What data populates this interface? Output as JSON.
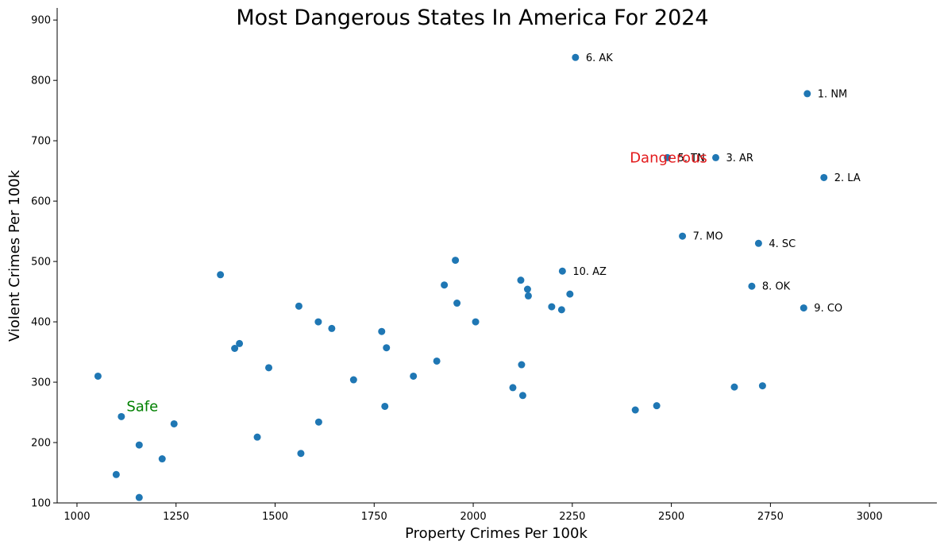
{
  "chart_data": {
    "type": "scatter",
    "title": "Most Dangerous States In America For 2024",
    "xlabel": "Property Crimes Per 100k",
    "ylabel": "Violent Crimes Per 100k",
    "xlim": [
      950,
      3170
    ],
    "ylim": [
      100,
      920
    ],
    "xticks": [
      1000,
      1250,
      1500,
      1750,
      2000,
      2250,
      2500,
      2750,
      3000
    ],
    "yticks": [
      100,
      200,
      300,
      400,
      500,
      600,
      700,
      800,
      900
    ],
    "grid": false,
    "point_color": "#1f77b4",
    "points": [
      {
        "x": 2843,
        "y": 778,
        "label": "1. NM"
      },
      {
        "x": 2885,
        "y": 639,
        "label": "2. LA"
      },
      {
        "x": 2612,
        "y": 672,
        "label": "3. AR"
      },
      {
        "x": 2720,
        "y": 530,
        "label": "4. SC"
      },
      {
        "x": 2490,
        "y": 672,
        "label": "5. TN"
      },
      {
        "x": 2258,
        "y": 838,
        "label": "6. AK"
      },
      {
        "x": 2528,
        "y": 542,
        "label": "7. MO"
      },
      {
        "x": 2703,
        "y": 459,
        "label": "8. OK"
      },
      {
        "x": 2834,
        "y": 423,
        "label": "9. CO"
      },
      {
        "x": 2225,
        "y": 484,
        "label": "10. AZ"
      },
      {
        "x": 1053,
        "y": 310
      },
      {
        "x": 1099,
        "y": 147
      },
      {
        "x": 1112,
        "y": 243
      },
      {
        "x": 1157,
        "y": 196
      },
      {
        "x": 1157,
        "y": 109
      },
      {
        "x": 1215,
        "y": 173
      },
      {
        "x": 1245,
        "y": 231
      },
      {
        "x": 1362,
        "y": 478
      },
      {
        "x": 1398,
        "y": 356
      },
      {
        "x": 1410,
        "y": 364
      },
      {
        "x": 1455,
        "y": 209
      },
      {
        "x": 1484,
        "y": 324
      },
      {
        "x": 1560,
        "y": 426
      },
      {
        "x": 1565,
        "y": 182
      },
      {
        "x": 1609,
        "y": 400
      },
      {
        "x": 1610,
        "y": 234
      },
      {
        "x": 1643,
        "y": 389
      },
      {
        "x": 1698,
        "y": 304
      },
      {
        "x": 1769,
        "y": 384
      },
      {
        "x": 1777,
        "y": 260
      },
      {
        "x": 1781,
        "y": 357
      },
      {
        "x": 1849,
        "y": 310
      },
      {
        "x": 1908,
        "y": 335
      },
      {
        "x": 1927,
        "y": 461
      },
      {
        "x": 1955,
        "y": 502
      },
      {
        "x": 1959,
        "y": 431
      },
      {
        "x": 2006,
        "y": 400
      },
      {
        "x": 2100,
        "y": 291
      },
      {
        "x": 2120,
        "y": 469
      },
      {
        "x": 2122,
        "y": 329
      },
      {
        "x": 2125,
        "y": 278
      },
      {
        "x": 2137,
        "y": 454
      },
      {
        "x": 2139,
        "y": 443
      },
      {
        "x": 2198,
        "y": 425
      },
      {
        "x": 2223,
        "y": 420
      },
      {
        "x": 2244,
        "y": 446
      },
      {
        "x": 2409,
        "y": 254
      },
      {
        "x": 2463,
        "y": 261
      },
      {
        "x": 2659,
        "y": 292
      },
      {
        "x": 2730,
        "y": 294
      }
    ],
    "annotations": [
      {
        "text": "Dangerous",
        "x": 2395,
        "y": 672,
        "color": "#e31a1c"
      },
      {
        "text": "Safe",
        "x": 1125,
        "y": 260,
        "color": "#008000"
      }
    ]
  }
}
